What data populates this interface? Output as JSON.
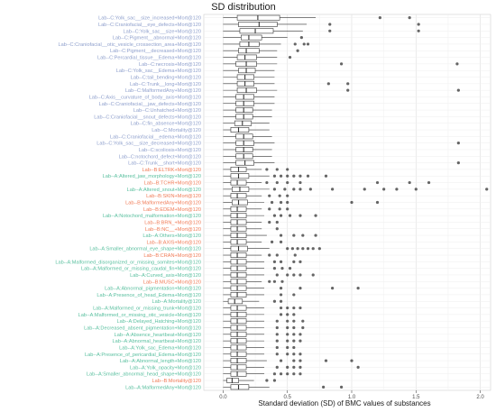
{
  "chart_data": {
    "type": "boxplot",
    "title": "SD distribution",
    "xlabel": "Standard deviation (SD) of BMC values of substances",
    "ylabel": "",
    "xlim": [
      -0.15,
      2.08
    ],
    "xticks": [
      0.0,
      0.5,
      1.0,
      1.5,
      2.0
    ],
    "xtick_labels": [
      "0.0",
      "0.5",
      "1.0",
      "1.5",
      "2.0"
    ],
    "grid": true,
    "group_colors": {
      "C": "#8e9fcc",
      "B": "#f07a55",
      "A": "#58bf9e"
    },
    "box_color": "#333333",
    "outlier_color": "#333333",
    "boxes": [
      {
        "label": "Lab--C:Yolk_sac__size_increased+Mort@120",
        "group": "C",
        "whislo": 0.0,
        "q1": 0.11,
        "med": 0.27,
        "q3": 0.44,
        "whishi": 0.72,
        "outliers": [
          1.22,
          1.45
        ]
      },
      {
        "label": "Lab--C:Craniofacial__eye_defects+Mort@120",
        "group": "C",
        "whislo": 0.0,
        "q1": 0.12,
        "med": 0.28,
        "q3": 0.42,
        "whishi": 0.65,
        "outliers": [
          0.83,
          1.52
        ]
      },
      {
        "label": "Lab--C:Yolk_sac__size+Mort@120",
        "group": "C",
        "whislo": 0.0,
        "q1": 0.13,
        "med": 0.25,
        "q3": 0.39,
        "whishi": 0.62,
        "outliers": [
          0.83,
          1.52
        ]
      },
      {
        "label": "Lab--C:Pigment__abnormal+Mort@120",
        "group": "C",
        "whislo": 0.0,
        "q1": 0.14,
        "med": 0.2,
        "q3": 0.3,
        "whishi": 0.5,
        "outliers": [
          0.61
        ]
      },
      {
        "label": "Lab--C:Craniofacial__otic_vesicle_crossection_area+Mort@120",
        "group": "C",
        "whislo": 0.0,
        "q1": 0.13,
        "med": 0.2,
        "q3": 0.28,
        "whishi": 0.45,
        "outliers": [
          0.56,
          0.63,
          0.66
        ]
      },
      {
        "label": "Lab--C:Pigment__decreased+Mort@120",
        "group": "C",
        "whislo": 0.0,
        "q1": 0.12,
        "med": 0.18,
        "q3": 0.28,
        "whishi": 0.42,
        "outliers": [
          0.58
        ]
      },
      {
        "label": "Lab--C:Percardial_tissue__Edema+Mort@120",
        "group": "C",
        "whislo": 0.0,
        "q1": 0.11,
        "med": 0.17,
        "q3": 0.26,
        "whishi": 0.42,
        "outliers": [
          0.52
        ]
      },
      {
        "label": "Lab--C:necrosis+Mort@120",
        "group": "C",
        "whislo": 0.0,
        "q1": 0.1,
        "med": 0.18,
        "q3": 0.26,
        "whishi": 0.42,
        "outliers": [
          0.92,
          1.82
        ]
      },
      {
        "label": "Lab--C:Yolk_sac__Edema+Mort@120",
        "group": "C",
        "whislo": 0.0,
        "q1": 0.12,
        "med": 0.18,
        "q3": 0.25,
        "whishi": 0.4,
        "outliers": []
      },
      {
        "label": "Lab--C:tail_bending+Mort@120",
        "group": "C",
        "whislo": 0.0,
        "q1": 0.11,
        "med": 0.17,
        "q3": 0.24,
        "whishi": 0.4,
        "outliers": []
      },
      {
        "label": "Lab--C:Trunk__long+Mort@120",
        "group": "C",
        "whislo": 0.0,
        "q1": 0.11,
        "med": 0.17,
        "q3": 0.24,
        "whishi": 0.4,
        "outliers": [
          0.82,
          0.97
        ]
      },
      {
        "label": "Lab--C:MalformedAny+Mort@120",
        "group": "C",
        "whislo": 0.0,
        "q1": 0.11,
        "med": 0.18,
        "q3": 0.26,
        "whishi": 0.42,
        "outliers": [
          0.97,
          1.83
        ]
      },
      {
        "label": "Lab--C:Axis__curvature_of_body_axis+Mort@120",
        "group": "C",
        "whislo": 0.0,
        "q1": 0.1,
        "med": 0.16,
        "q3": 0.24,
        "whishi": 0.4,
        "outliers": []
      },
      {
        "label": "Lab--C:Craniofacial__jaw_defects+Mort@120",
        "group": "C",
        "whislo": 0.0,
        "q1": 0.1,
        "med": 0.16,
        "q3": 0.24,
        "whishi": 0.4,
        "outliers": []
      },
      {
        "label": "Lab--C:Unhatched+Mort@120",
        "group": "C",
        "whislo": 0.0,
        "q1": 0.1,
        "med": 0.16,
        "q3": 0.23,
        "whishi": 0.38,
        "outliers": []
      },
      {
        "label": "Lab--C:Craniofacial__snout_defects+Mort@120",
        "group": "C",
        "whislo": 0.0,
        "q1": 0.1,
        "med": 0.16,
        "q3": 0.23,
        "whishi": 0.38,
        "outliers": []
      },
      {
        "label": "Lab--C:fin_absence+Mort@120",
        "group": "C",
        "whislo": 0.0,
        "q1": 0.09,
        "med": 0.15,
        "q3": 0.22,
        "whishi": 0.36,
        "outliers": []
      },
      {
        "label": "Lab--C:Mortality@120",
        "group": "C",
        "whislo": 0.0,
        "q1": 0.06,
        "med": 0.12,
        "q3": 0.2,
        "whishi": 0.36,
        "outliers": []
      },
      {
        "label": "Lab--C:Craniofacial__edema+Mort@120",
        "group": "C",
        "whislo": 0.0,
        "q1": 0.1,
        "med": 0.16,
        "q3": 0.23,
        "whishi": 0.38,
        "outliers": []
      },
      {
        "label": "Lab--C:Yolk_sac__size_decreased+Mort@120",
        "group": "C",
        "whislo": 0.0,
        "q1": 0.1,
        "med": 0.16,
        "q3": 0.24,
        "whishi": 0.4,
        "outliers": [
          1.83
        ]
      },
      {
        "label": "Lab--C:scoliosis+Mort@120",
        "group": "C",
        "whislo": 0.0,
        "q1": 0.1,
        "med": 0.16,
        "q3": 0.23,
        "whishi": 0.38,
        "outliers": []
      },
      {
        "label": "Lab--C:notochord_defect+Mort@120",
        "group": "C",
        "whislo": 0.0,
        "q1": 0.1,
        "med": 0.16,
        "q3": 0.23,
        "whishi": 0.38,
        "outliers": []
      },
      {
        "label": "Lab--C:Trunk__short+Mort@120",
        "group": "C",
        "whislo": 0.0,
        "q1": 0.1,
        "med": 0.17,
        "q3": 0.24,
        "whishi": 0.4,
        "outliers": [
          1.83
        ]
      },
      {
        "label": "Lab--B:ELTRK+Mort@120",
        "group": "B",
        "whislo": 0.0,
        "q1": 0.06,
        "med": 0.12,
        "q3": 0.18,
        "whishi": 0.3,
        "outliers": [
          0.34,
          0.42,
          0.5
        ]
      },
      {
        "label": "Lab--A:Altered_jaw_morphology+Mort@120",
        "group": "A",
        "whislo": 0.0,
        "q1": 0.06,
        "med": 0.12,
        "q3": 0.2,
        "whishi": 0.36,
        "outliers": [
          0.4,
          0.45,
          0.5,
          0.55,
          0.6,
          0.66,
          0.8
        ]
      },
      {
        "label": "Lab--B:TCHR+Mort@120",
        "group": "B",
        "whislo": 0.0,
        "q1": 0.06,
        "med": 0.11,
        "q3": 0.18,
        "whishi": 0.3,
        "outliers": [
          0.34,
          0.42,
          0.5,
          0.6,
          1.2,
          1.45,
          1.6
        ]
      },
      {
        "label": "Lab--A:Altered_snout+Mort@120",
        "group": "A",
        "whislo": 0.0,
        "q1": 0.07,
        "med": 0.13,
        "q3": 0.2,
        "whishi": 0.36,
        "outliers": [
          0.4,
          0.48,
          0.55,
          0.6,
          0.68,
          0.85,
          1.1,
          1.25,
          1.35,
          1.5,
          2.05
        ]
      },
      {
        "label": "Lab--B:SKIN+Mort@120",
        "group": "B",
        "whislo": 0.0,
        "q1": 0.06,
        "med": 0.11,
        "q3": 0.18,
        "whishi": 0.3,
        "outliers": [
          0.36,
          0.44,
          0.5
        ]
      },
      {
        "label": "Lab--B:MalformedAny+Mort@120",
        "group": "B",
        "whislo": 0.0,
        "q1": 0.07,
        "med": 0.12,
        "q3": 0.19,
        "whishi": 0.32,
        "outliers": [
          0.38,
          0.45,
          0.5,
          1.0,
          1.2
        ]
      },
      {
        "label": "Lab--B:EDEM+Mort@120",
        "group": "B",
        "whislo": 0.0,
        "q1": 0.06,
        "med": 0.11,
        "q3": 0.18,
        "whishi": 0.3,
        "outliers": [
          0.36,
          0.44,
          0.5
        ]
      },
      {
        "label": "Lab--A:Notochord_malformation+Mort@120",
        "group": "A",
        "whislo": 0.0,
        "q1": 0.06,
        "med": 0.11,
        "q3": 0.18,
        "whishi": 0.32,
        "outliers": [
          0.4,
          0.45,
          0.52,
          0.6,
          0.72
        ]
      },
      {
        "label": "Lab--B:BRN_+Mort@120",
        "group": "B",
        "whislo": 0.0,
        "q1": 0.06,
        "med": 0.11,
        "q3": 0.18,
        "whishi": 0.3,
        "outliers": [
          0.36,
          0.42
        ]
      },
      {
        "label": "Lab--B:NC__+Mort@120",
        "group": "B",
        "whislo": 0.0,
        "q1": 0.06,
        "med": 0.11,
        "q3": 0.18,
        "whishi": 0.3,
        "outliers": [
          0.42
        ]
      },
      {
        "label": "Lab--A:Others+Mort@120",
        "group": "A",
        "whislo": 0.0,
        "q1": 0.06,
        "med": 0.11,
        "q3": 0.18,
        "whishi": 0.34,
        "outliers": [
          0.45,
          0.55,
          0.62,
          0.72
        ]
      },
      {
        "label": "Lab--B:AXIS+Mort@120",
        "group": "B",
        "whislo": 0.0,
        "q1": 0.06,
        "med": 0.11,
        "q3": 0.18,
        "whishi": 0.3,
        "outliers": [
          0.38,
          0.45
        ]
      },
      {
        "label": "Lab--A:Smaller_abnormal_eye_shape+Mort@120",
        "group": "A",
        "whislo": 0.0,
        "q1": 0.06,
        "med": 0.12,
        "q3": 0.19,
        "whishi": 0.36,
        "outliers": [
          0.5,
          0.54,
          0.58,
          0.62,
          0.66,
          0.7,
          0.75
        ]
      },
      {
        "label": "Lab--B:CRAN+Mort@120",
        "group": "B",
        "whislo": 0.0,
        "q1": 0.06,
        "med": 0.11,
        "q3": 0.18,
        "whishi": 0.3,
        "outliers": [
          0.36,
          0.42,
          0.56
        ]
      },
      {
        "label": "Lab--A:Malformed_disorganized_or_missing_somites+Mort@120",
        "group": "A",
        "whislo": 0.0,
        "q1": 0.06,
        "med": 0.11,
        "q3": 0.18,
        "whishi": 0.32,
        "outliers": [
          0.4,
          0.45,
          0.55,
          0.6
        ]
      },
      {
        "label": "Lab--A:Malformed_or_missing_caudal_fin+Mort@120",
        "group": "A",
        "whislo": 0.0,
        "q1": 0.06,
        "med": 0.11,
        "q3": 0.18,
        "whishi": 0.32,
        "outliers": [
          0.4,
          0.46,
          0.52
        ]
      },
      {
        "label": "Lab--A:Curved_axis+Mort@120",
        "group": "A",
        "whislo": 0.0,
        "q1": 0.06,
        "med": 0.11,
        "q3": 0.18,
        "whishi": 0.32,
        "outliers": [
          0.42,
          0.5,
          0.55,
          0.6,
          0.7
        ]
      },
      {
        "label": "Lab--B:MUSC+Mort@120",
        "group": "B",
        "whislo": 0.0,
        "q1": 0.06,
        "med": 0.11,
        "q3": 0.18,
        "whishi": 0.3,
        "outliers": [
          0.36,
          0.4,
          0.46
        ]
      },
      {
        "label": "Lab--A:Abnormal_pigmentation+Mort@120",
        "group": "A",
        "whislo": 0.0,
        "q1": 0.06,
        "med": 0.11,
        "q3": 0.18,
        "whishi": 0.32,
        "outliers": [
          0.45,
          0.6,
          0.85,
          1.05
        ]
      },
      {
        "label": "Lab--A:Presence_of_head_Edema+Mort@120",
        "group": "A",
        "whislo": 0.0,
        "q1": 0.06,
        "med": 0.11,
        "q3": 0.18,
        "whishi": 0.32,
        "outliers": [
          0.45,
          0.55
        ]
      },
      {
        "label": "Lab--A:Mortality@120",
        "group": "A",
        "whislo": 0.0,
        "q1": 0.04,
        "med": 0.09,
        "q3": 0.15,
        "whishi": 0.28,
        "outliers": [
          0.4,
          0.45
        ]
      },
      {
        "label": "Lab--A:Malformed_or_missing_trunk+Mort@120",
        "group": "A",
        "whislo": 0.0,
        "q1": 0.06,
        "med": 0.11,
        "q3": 0.18,
        "whishi": 0.32,
        "outliers": [
          0.45,
          0.5,
          0.55,
          0.6
        ]
      },
      {
        "label": "Lab--A:Malformed_or_missing_otic_vesicle+Mort@120",
        "group": "A",
        "whislo": 0.0,
        "q1": 0.06,
        "med": 0.11,
        "q3": 0.18,
        "whishi": 0.32,
        "outliers": [
          0.45,
          0.5,
          0.55
        ]
      },
      {
        "label": "Lab--A:Delayed_Hatching+Mort@120",
        "group": "A",
        "whislo": 0.0,
        "q1": 0.06,
        "med": 0.11,
        "q3": 0.18,
        "whishi": 0.32,
        "outliers": [
          0.42,
          0.5,
          0.55,
          0.62
        ]
      },
      {
        "label": "Lab--A:Decreased_absent_pigmentation+Mort@120",
        "group": "A",
        "whislo": 0.0,
        "q1": 0.06,
        "med": 0.11,
        "q3": 0.18,
        "whishi": 0.32,
        "outliers": [
          0.42,
          0.5,
          0.55,
          0.62
        ]
      },
      {
        "label": "Lab--A:Absence_heartbeat+Mort@120",
        "group": "A",
        "whislo": 0.0,
        "q1": 0.06,
        "med": 0.11,
        "q3": 0.18,
        "whishi": 0.32,
        "outliers": [
          0.42,
          0.5,
          0.55,
          0.6
        ]
      },
      {
        "label": "Lab--A:Abnormal_heartbeat+Mort@120",
        "group": "A",
        "whislo": 0.0,
        "q1": 0.06,
        "med": 0.11,
        "q3": 0.18,
        "whishi": 0.32,
        "outliers": [
          0.42,
          0.5,
          0.55,
          0.6
        ]
      },
      {
        "label": "Lab--A:Yolk_sac_Edema+Mort@120",
        "group": "A",
        "whislo": 0.0,
        "q1": 0.06,
        "med": 0.11,
        "q3": 0.18,
        "whishi": 0.32,
        "outliers": [
          0.42,
          0.5,
          0.55
        ]
      },
      {
        "label": "Lab--A:Presence_of_pericardial_Edema+Mort@120",
        "group": "A",
        "whislo": 0.0,
        "q1": 0.06,
        "med": 0.11,
        "q3": 0.18,
        "whishi": 0.32,
        "outliers": [
          0.42,
          0.5,
          0.55,
          0.6
        ]
      },
      {
        "label": "Lab--A:Abnormal_length+Mort@120",
        "group": "A",
        "whislo": 0.0,
        "q1": 0.06,
        "med": 0.11,
        "q3": 0.18,
        "whishi": 0.34,
        "outliers": [
          0.45,
          0.55,
          0.6,
          0.8,
          1.0
        ]
      },
      {
        "label": "Lab--A:Yolk_opacity+Mort@120",
        "group": "A",
        "whislo": 0.0,
        "q1": 0.06,
        "med": 0.11,
        "q3": 0.18,
        "whishi": 0.32,
        "outliers": [
          0.42,
          0.5,
          0.55,
          0.6,
          1.05
        ]
      },
      {
        "label": "Lab--A:Smaller_abnormal_head_shape+Mort@120",
        "group": "A",
        "whislo": 0.0,
        "q1": 0.06,
        "med": 0.11,
        "q3": 0.18,
        "whishi": 0.32,
        "outliers": [
          0.4,
          0.45,
          0.5,
          0.55,
          0.6
        ]
      },
      {
        "label": "Lab--B:Mortality@120",
        "group": "B",
        "whislo": 0.0,
        "q1": 0.03,
        "med": 0.07,
        "q3": 0.12,
        "whishi": 0.24,
        "outliers": [
          0.34,
          0.4
        ]
      },
      {
        "label": "Lab--A:MalformedAny+Mort@120",
        "group": "A",
        "whislo": 0.0,
        "q1": 0.06,
        "med": 0.12,
        "q3": 0.2,
        "whishi": 0.36,
        "outliers": [
          0.78,
          0.92
        ]
      }
    ]
  }
}
